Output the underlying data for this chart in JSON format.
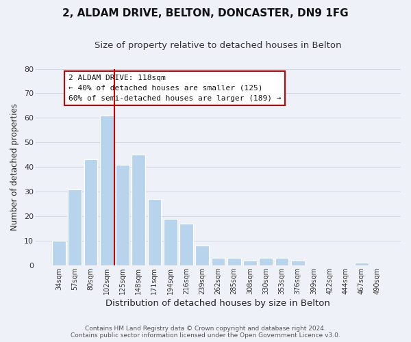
{
  "title": "2, ALDAM DRIVE, BELTON, DONCASTER, DN9 1FG",
  "subtitle": "Size of property relative to detached houses in Belton",
  "xlabel": "Distribution of detached houses by size in Belton",
  "ylabel": "Number of detached properties",
  "bar_labels": [
    "34sqm",
    "57sqm",
    "80sqm",
    "102sqm",
    "125sqm",
    "148sqm",
    "171sqm",
    "194sqm",
    "216sqm",
    "239sqm",
    "262sqm",
    "285sqm",
    "308sqm",
    "330sqm",
    "353sqm",
    "376sqm",
    "399sqm",
    "422sqm",
    "444sqm",
    "467sqm",
    "490sqm"
  ],
  "bar_values": [
    10,
    31,
    43,
    61,
    41,
    45,
    27,
    19,
    17,
    8,
    3,
    3,
    2,
    3,
    3,
    2,
    0,
    0,
    0,
    1,
    0
  ],
  "bar_color": "#b8d4ec",
  "bar_edge_color": "#ffffff",
  "grid_color": "#d0d8e8",
  "background_color": "#eef2f8",
  "vline_color": "#cc0000",
  "annotation_box_text": "2 ALDAM DRIVE: 118sqm\n← 40% of detached houses are smaller (125)\n60% of semi-detached houses are larger (189) →",
  "ylim": [
    0,
    80
  ],
  "yticks": [
    0,
    10,
    20,
    30,
    40,
    50,
    60,
    70,
    80
  ],
  "footer_text": "Contains HM Land Registry data © Crown copyright and database right 2024.\nContains public sector information licensed under the Open Government Licence v3.0.",
  "title_fontsize": 11,
  "subtitle_fontsize": 9.5,
  "xlabel_fontsize": 9.5,
  "ylabel_fontsize": 8.5,
  "annotation_fontsize": 8.0,
  "footer_fontsize": 6.5
}
